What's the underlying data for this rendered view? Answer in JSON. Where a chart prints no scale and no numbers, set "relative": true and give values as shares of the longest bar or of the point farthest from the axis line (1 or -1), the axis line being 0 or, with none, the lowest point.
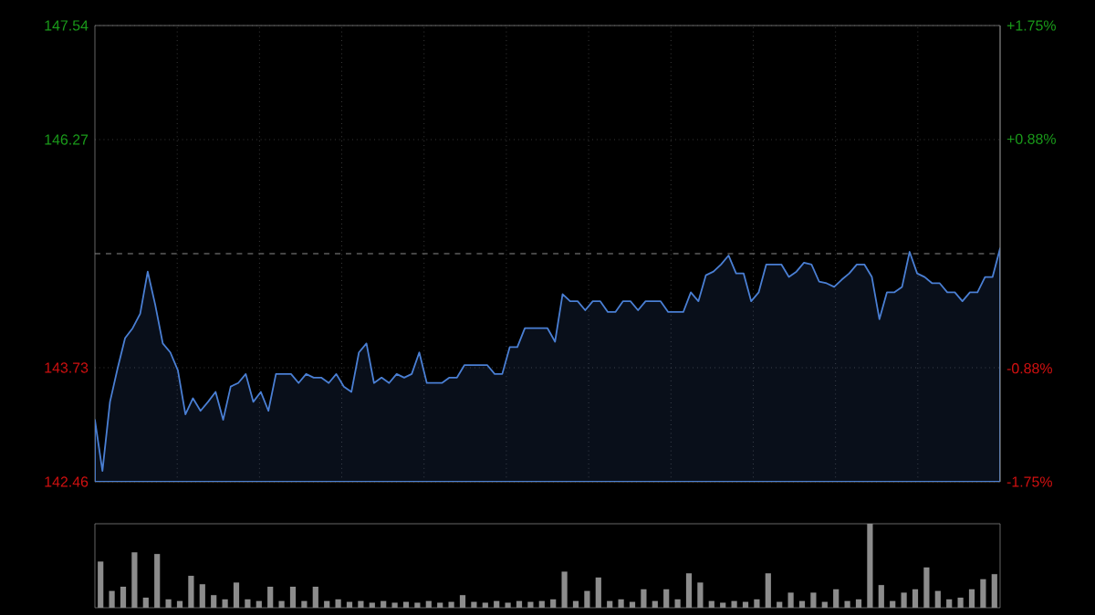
{
  "chart_data": [
    {
      "type": "area",
      "color": "#4a7fd4",
      "grid": true,
      "tick_labels": "y",
      "categories": [
        null,
        null,
        null,
        null,
        null,
        null,
        null,
        null,
        null,
        null,
        null,
        null,
        null,
        null,
        null,
        null,
        null,
        null,
        null,
        null,
        null,
        null,
        null,
        null,
        null,
        null,
        null,
        null,
        null,
        null,
        null,
        null,
        null,
        null,
        null,
        null,
        null,
        null,
        null,
        null,
        null,
        null,
        null,
        null,
        null,
        null,
        null,
        null,
        null,
        null,
        null,
        null,
        null,
        null,
        null,
        null,
        null,
        null,
        null,
        null,
        null,
        null,
        null,
        null,
        null,
        null,
        null,
        null,
        null,
        null,
        null,
        null,
        null,
        null,
        null,
        null,
        null,
        null,
        null,
        null,
        null,
        null,
        null,
        null,
        null,
        null,
        null,
        null,
        null,
        null,
        null,
        null,
        null,
        null,
        null,
        null,
        null,
        null,
        null,
        null,
        null,
        null,
        null,
        null,
        null,
        null,
        null,
        null,
        null,
        null,
        null,
        null,
        null,
        null,
        null,
        null,
        null,
        null,
        null,
        null,
        null
      ],
      "values": [
        143.15,
        142.58,
        143.35,
        143.72,
        144.06,
        144.17,
        144.33,
        144.8,
        144.43,
        144.0,
        143.9,
        143.7,
        143.21,
        143.39,
        143.25,
        143.35,
        143.46,
        143.15,
        143.52,
        143.56,
        143.66,
        143.35,
        143.46,
        143.25,
        143.66,
        143.66,
        143.66,
        143.56,
        143.66,
        143.62,
        143.62,
        143.56,
        143.66,
        143.52,
        143.46,
        143.9,
        144.0,
        143.56,
        143.62,
        143.56,
        143.66,
        143.62,
        143.66,
        143.9,
        143.56,
        143.56,
        143.56,
        143.62,
        143.62,
        143.76,
        143.76,
        143.76,
        143.76,
        143.66,
        143.66,
        143.96,
        143.96,
        144.17,
        144.17,
        144.17,
        144.17,
        144.02,
        144.55,
        144.47,
        144.47,
        144.37,
        144.47,
        144.47,
        144.35,
        144.35,
        144.47,
        144.47,
        144.37,
        144.47,
        144.47,
        144.47,
        144.35,
        144.35,
        144.35,
        144.57,
        144.47,
        144.76,
        144.8,
        144.88,
        144.98,
        144.78,
        144.78,
        144.47,
        144.57,
        144.88,
        144.88,
        144.88,
        144.74,
        144.8,
        144.9,
        144.88,
        144.69,
        144.67,
        144.63,
        144.71,
        144.78,
        144.88,
        144.88,
        144.74,
        144.27,
        144.57,
        144.57,
        144.63,
        145.02,
        144.78,
        144.74,
        144.67,
        144.67,
        144.57,
        144.57,
        144.47,
        144.57,
        144.57,
        144.74,
        144.74,
        145.06
      ],
      "ylim": [
        142.46,
        147.54
      ],
      "yticks": [
        142.46,
        143.73,
        146.27,
        147.54
      ],
      "y2lim": [
        -1.75,
        1.75
      ],
      "y2ticks": [
        {
          "value": -1.75,
          "label": "-1.75%"
        },
        {
          "value": -0.88,
          "label": "-0.88%"
        },
        {
          "value": 0.88,
          "label": "+0.88%"
        },
        {
          "value": 1.75,
          "label": "+1.75%"
        }
      ],
      "ref_lines": [
        {
          "axis": "y",
          "value": 145.0,
          "line_style": "dashed"
        }
      ]
    },
    {
      "type": "bar",
      "relative": true,
      "color": "#8c8c8c",
      "categories": [
        null,
        null,
        null,
        null,
        null,
        null,
        null,
        null,
        null,
        null,
        null,
        null,
        null,
        null,
        null,
        null,
        null,
        null,
        null,
        null,
        null,
        null,
        null,
        null,
        null,
        null,
        null,
        null,
        null,
        null,
        null,
        null,
        null,
        null,
        null,
        null,
        null,
        null,
        null,
        null,
        null,
        null,
        null,
        null,
        null,
        null,
        null,
        null,
        null,
        null,
        null,
        null,
        null,
        null,
        null,
        null,
        null,
        null,
        null,
        null,
        null,
        null,
        null,
        null,
        null,
        null,
        null,
        null,
        null,
        null,
        null,
        null,
        null,
        null,
        null,
        null,
        null,
        null,
        null,
        null
      ],
      "values": [
        0.55,
        0.2,
        0.25,
        0.66,
        0.12,
        0.64,
        0.1,
        0.08,
        0.38,
        0.28,
        0.15,
        0.1,
        0.3,
        0.1,
        0.08,
        0.25,
        0.08,
        0.25,
        0.08,
        0.25,
        0.08,
        0.1,
        0.07,
        0.08,
        0.06,
        0.08,
        0.06,
        0.07,
        0.06,
        0.08,
        0.06,
        0.07,
        0.15,
        0.07,
        0.06,
        0.08,
        0.06,
        0.08,
        0.07,
        0.08,
        0.1,
        0.43,
        0.08,
        0.2,
        0.36,
        0.08,
        0.1,
        0.07,
        0.22,
        0.08,
        0.22,
        0.1,
        0.41,
        0.3,
        0.08,
        0.06,
        0.08,
        0.07,
        0.1,
        0.41,
        0.07,
        0.18,
        0.08,
        0.18,
        0.07,
        0.22,
        0.08,
        0.1,
        1.0,
        0.27,
        0.08,
        0.18,
        0.22,
        0.48,
        0.2,
        0.1,
        0.12,
        0.22,
        0.34,
        0.4
      ]
    }
  ]
}
